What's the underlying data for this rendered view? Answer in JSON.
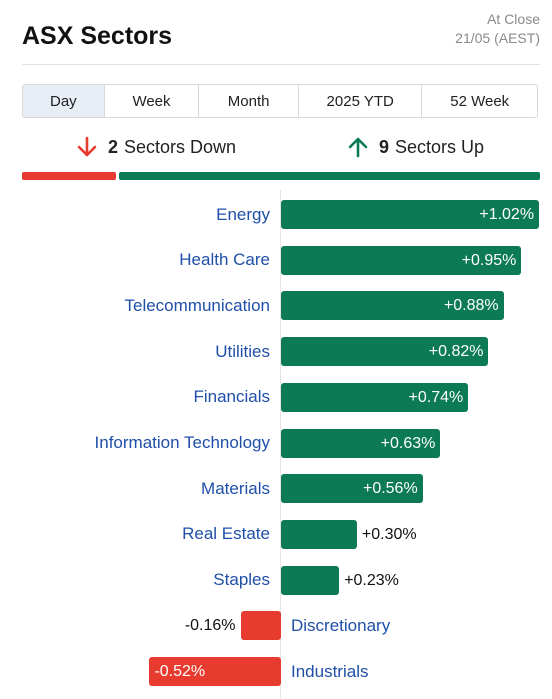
{
  "header": {
    "title": "ASX Sectors",
    "as_of_line1": "At Close",
    "as_of_line2": "21/05 (AEST)"
  },
  "tabs": [
    {
      "label": "Day",
      "active": true
    },
    {
      "label": "Week",
      "active": false
    },
    {
      "label": "Month",
      "active": false
    },
    {
      "label": "2025 YTD",
      "active": false
    },
    {
      "label": "52 Week",
      "active": false
    }
  ],
  "summary": {
    "down_count": "2",
    "down_label": "Sectors Down",
    "up_count": "9",
    "up_label": "Sectors Up"
  },
  "colors": {
    "up": "#0b7a55",
    "down": "#e63b2e",
    "link": "#1f4fa8"
  },
  "chart_data": {
    "type": "bar",
    "orientation": "horizontal",
    "unit": "%",
    "categories": [
      "Energy",
      "Health Care",
      "Telecommunication",
      "Utilities",
      "Financials",
      "Information Technology",
      "Materials",
      "Real Estate",
      "Staples",
      "Discretionary",
      "Industrials"
    ],
    "values": [
      1.02,
      0.95,
      0.88,
      0.82,
      0.74,
      0.63,
      0.56,
      0.3,
      0.23,
      -0.16,
      -0.52
    ],
    "labels": [
      "+1.02%",
      "+0.95%",
      "+0.88%",
      "+0.82%",
      "+0.74%",
      "+0.63%",
      "+0.56%",
      "+0.30%",
      "+0.23%",
      "-0.16%",
      "-0.52%"
    ]
  }
}
